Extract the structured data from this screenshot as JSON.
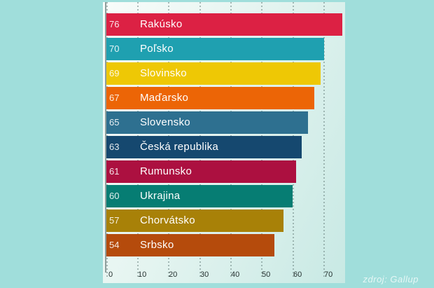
{
  "chart_data": {
    "type": "bar",
    "orientation": "horizontal",
    "title": "",
    "categories": [
      "Rakúsko",
      "Poľsko",
      "Slovinsko",
      "Maďarsko",
      "Slovensko",
      "Česká republika",
      "Rumunsko",
      "Ukrajina",
      "Chorvátsko",
      "Srbsko"
    ],
    "values": [
      76,
      70,
      69,
      67,
      65,
      63,
      61,
      60,
      57,
      54
    ],
    "bar_colors": [
      "#dc2144",
      "#1fa0b0",
      "#eec805",
      "#ec6506",
      "#2e7090",
      "#15486f",
      "#ac1040",
      "#067d73",
      "#a88108",
      "#b54b0c"
    ],
    "value_label_position": "inside-left",
    "x_ticks": [
      0,
      10,
      20,
      30,
      40,
      50,
      60,
      70
    ],
    "xlim": [
      0,
      77
    ],
    "grid": "vertical-dotted",
    "legend": "none",
    "source": "zdroj: Gallup"
  },
  "colors": {
    "page_background": "#a0dedb",
    "plot_gradient_start": "#f8fcfa",
    "plot_gradient_end": "#c8e9e4",
    "axis_line": "#8e9e9c",
    "gridline": "#6e8683",
    "tick_label": "#24302f",
    "bar_text": "#ffffff",
    "source_text": "#e9f6f4"
  }
}
